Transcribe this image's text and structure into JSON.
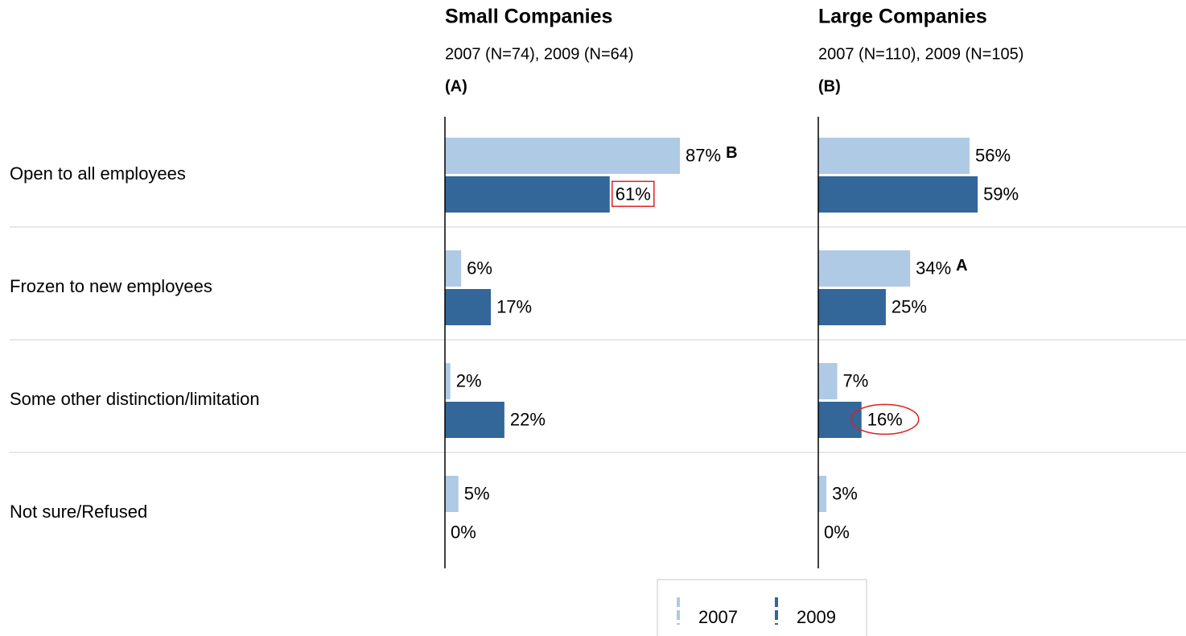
{
  "chart_data": [
    {
      "type": "bar",
      "orientation": "horizontal",
      "title": "Small Companies",
      "subtitle": "2007 (N=74), 2009 (N=64)",
      "group_label": "(A)",
      "categories": [
        "Open to all employees",
        "Frozen to new employees",
        "Some other distinction/limitation",
        "Not sure/Refused"
      ],
      "xlim": [
        0,
        100
      ],
      "series": [
        {
          "name": "2007",
          "color": "#aecae4",
          "values": [
            87,
            6,
            2,
            5
          ],
          "value_labels": [
            "87%",
            "6%",
            "2%",
            "5%"
          ]
        },
        {
          "name": "2009",
          "color": "#336699",
          "values": [
            61,
            17,
            22,
            0
          ],
          "value_labels": [
            "61%",
            "17%",
            "22%",
            "0%"
          ]
        }
      ],
      "annotations": [
        {
          "text": "B",
          "series": 0,
          "index": 0,
          "color": "#1aaa55"
        }
      ],
      "highlights": [
        {
          "series": 1,
          "index": 0,
          "shape": "box",
          "color": "#e02020"
        }
      ],
      "legend": "bottom"
    },
    {
      "type": "bar",
      "orientation": "horizontal",
      "title": "Large Companies",
      "subtitle": "2007 (N=110), 2009 (N=105)",
      "group_label": "(B)",
      "xlim": [
        0,
        100
      ],
      "series": [
        {
          "color": "#aecae4",
          "values": [
            56,
            34,
            7,
            3
          ],
          "value_labels": [
            "56%",
            "34%",
            "7%",
            "3%"
          ]
        },
        {
          "color": "#336699",
          "values": [
            59,
            25,
            16,
            0
          ],
          "value_labels": [
            "59%",
            "25%",
            "16%",
            "0%"
          ]
        }
      ],
      "annotations": [
        {
          "text": "A",
          "series": 0,
          "index": 1,
          "color": "#1aaa55"
        }
      ],
      "highlights": [
        {
          "series": 1,
          "index": 2,
          "shape": "ellipse",
          "color": "#e02020"
        }
      ]
    }
  ]
}
